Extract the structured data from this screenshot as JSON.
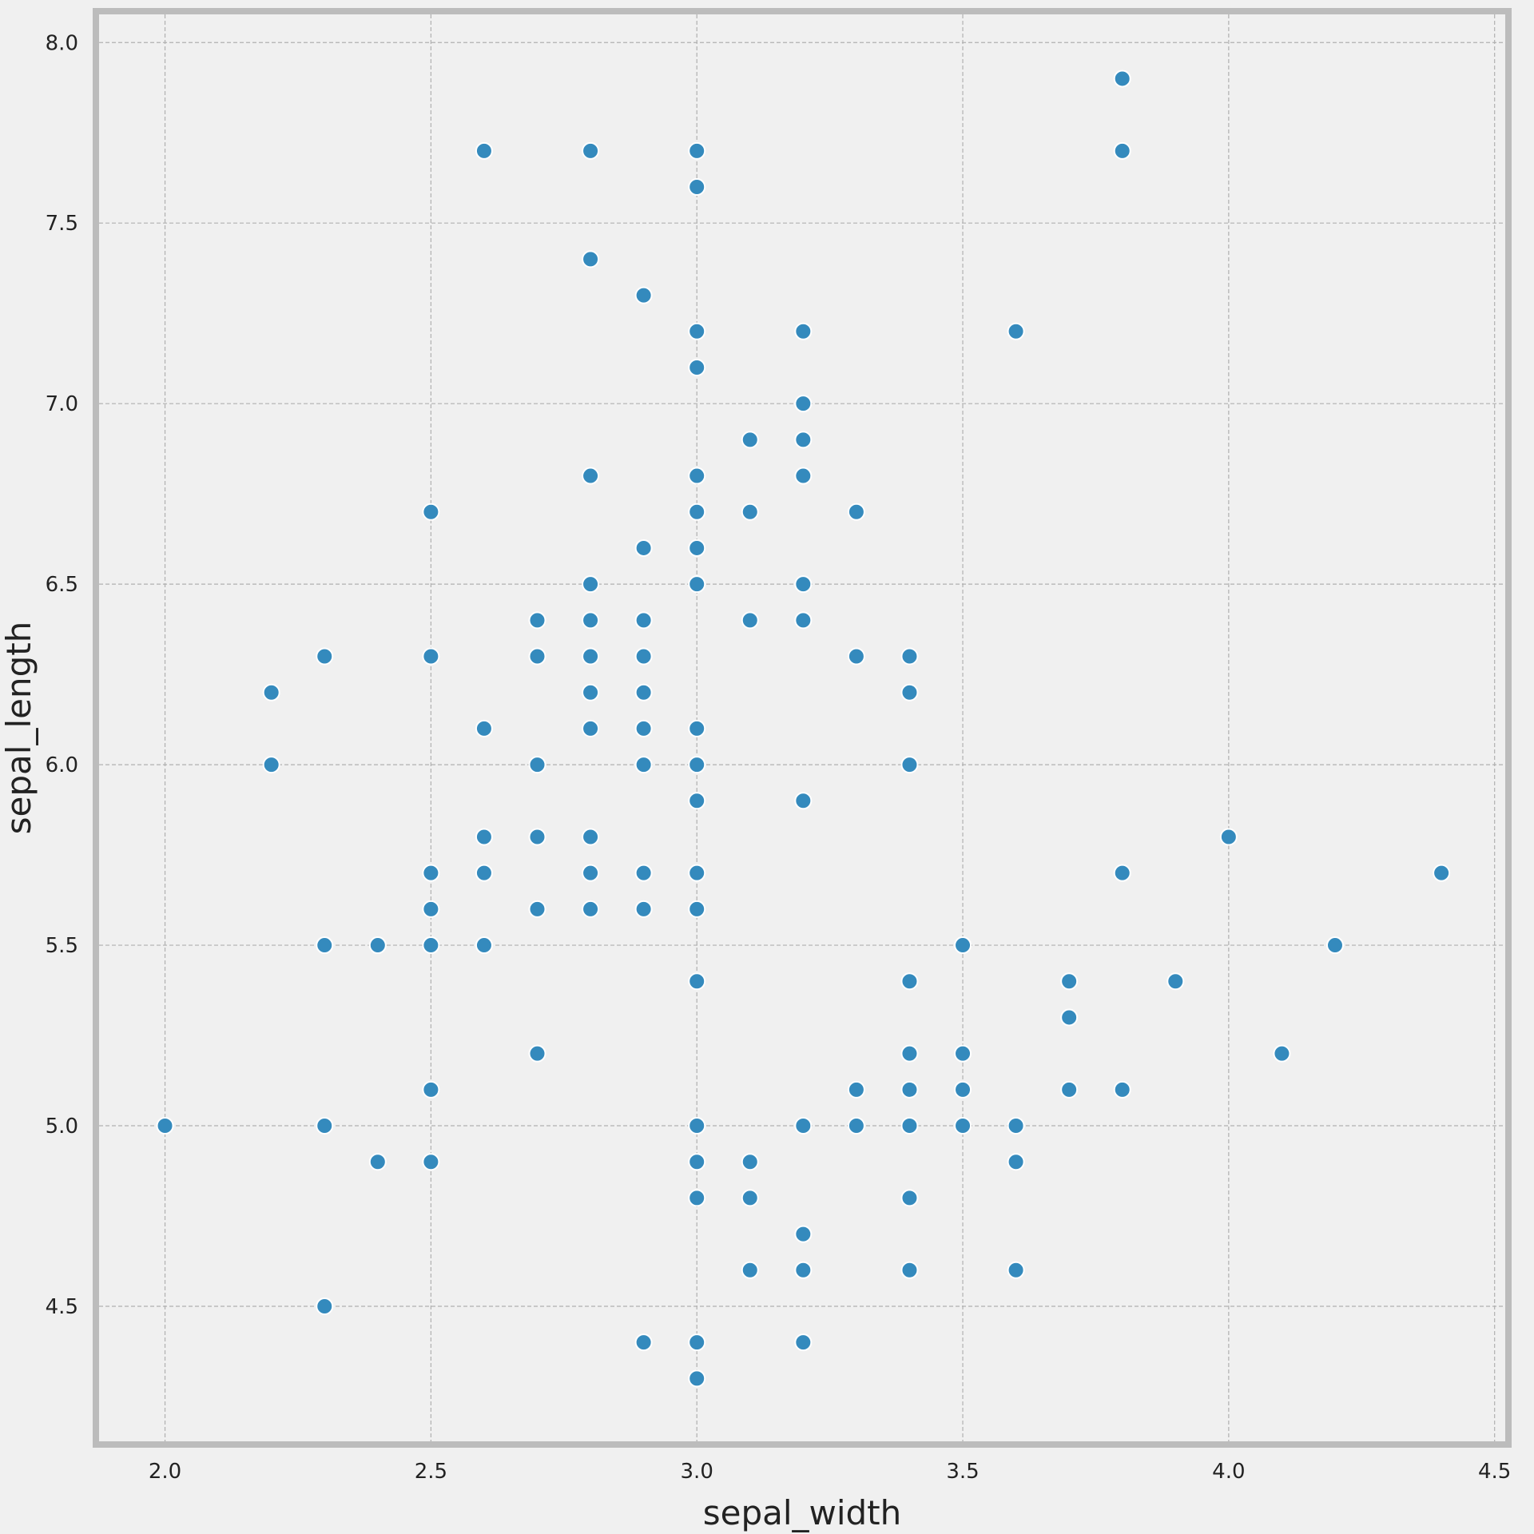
{
  "chart_data": {
    "type": "scatter",
    "x_label": "sepal_width",
    "y_label": "sepal_length",
    "color": "#348abd",
    "grid": true,
    "xlim": [
      1.876,
      4.52
    ],
    "ylim": [
      4.126,
      8.078
    ],
    "xticks": [
      {
        "value": 2.0,
        "label": "2.0"
      },
      {
        "value": 2.5,
        "label": "2.5"
      },
      {
        "value": 3.0,
        "label": "3.0"
      },
      {
        "value": 3.5,
        "label": "3.5"
      },
      {
        "value": 4.0,
        "label": "4.0"
      },
      {
        "value": 4.5,
        "label": "4.5"
      }
    ],
    "yticks": [
      {
        "value": 4.5,
        "label": "4.5"
      },
      {
        "value": 5.0,
        "label": "5.0"
      },
      {
        "value": 5.5,
        "label": "5.5"
      },
      {
        "value": 6.0,
        "label": "6.0"
      },
      {
        "value": 6.5,
        "label": "6.5"
      },
      {
        "value": 7.0,
        "label": "7.0"
      },
      {
        "value": 7.5,
        "label": "7.5"
      },
      {
        "value": 8.0,
        "label": "8.0"
      }
    ],
    "x": [
      3.8,
      2.6,
      2.8,
      3.0,
      3.8,
      3.0,
      2.8,
      2.9,
      3.0,
      3.2,
      3.6,
      3.0,
      3.2,
      3.1,
      3.2,
      2.8,
      3.0,
      3.2,
      2.5,
      3.0,
      3.1,
      3.3,
      2.9,
      3.0,
      2.8,
      3.0,
      3.2,
      2.7,
      2.8,
      2.9,
      3.1,
      3.2,
      2.3,
      2.5,
      2.7,
      2.8,
      2.9,
      3.3,
      3.4,
      2.2,
      2.8,
      2.9,
      3.4,
      2.6,
      2.8,
      2.9,
      3.0,
      2.2,
      2.7,
      2.9,
      3.0,
      3.4,
      3.0,
      3.2,
      2.6,
      2.7,
      2.8,
      4.0,
      2.5,
      2.6,
      2.8,
      2.9,
      3.0,
      3.8,
      4.4,
      2.5,
      2.7,
      2.8,
      2.9,
      3.0,
      2.3,
      2.4,
      2.5,
      2.6,
      3.5,
      4.2,
      3.0,
      3.4,
      3.7,
      3.9,
      3.7,
      2.7,
      3.4,
      3.5,
      4.1,
      2.5,
      3.3,
      3.4,
      3.5,
      3.7,
      3.8,
      2.0,
      2.3,
      3.0,
      3.2,
      3.3,
      3.4,
      3.5,
      3.6,
      2.4,
      2.5,
      3.0,
      3.1,
      3.6,
      3.0,
      3.1,
      3.4,
      3.2,
      3.1,
      3.2,
      3.4,
      3.6,
      2.3,
      2.9,
      3.0,
      3.2,
      3.0
    ],
    "y": [
      7.9,
      7.7,
      7.7,
      7.7,
      7.7,
      7.6,
      7.4,
      7.3,
      7.2,
      7.2,
      7.2,
      7.1,
      7.0,
      6.9,
      6.9,
      6.8,
      6.8,
      6.8,
      6.7,
      6.7,
      6.7,
      6.7,
      6.6,
      6.6,
      6.5,
      6.5,
      6.5,
      6.4,
      6.4,
      6.4,
      6.4,
      6.4,
      6.3,
      6.3,
      6.3,
      6.3,
      6.3,
      6.3,
      6.3,
      6.2,
      6.2,
      6.2,
      6.2,
      6.1,
      6.1,
      6.1,
      6.1,
      6.0,
      6.0,
      6.0,
      6.0,
      6.0,
      5.9,
      5.9,
      5.8,
      5.8,
      5.8,
      5.8,
      5.7,
      5.7,
      5.7,
      5.7,
      5.7,
      5.7,
      5.7,
      5.6,
      5.6,
      5.6,
      5.6,
      5.6,
      5.5,
      5.5,
      5.5,
      5.5,
      5.5,
      5.5,
      5.4,
      5.4,
      5.4,
      5.4,
      5.3,
      5.2,
      5.2,
      5.2,
      5.2,
      5.1,
      5.1,
      5.1,
      5.1,
      5.1,
      5.1,
      5.0,
      5.0,
      5.0,
      5.0,
      5.0,
      5.0,
      5.0,
      5.0,
      4.9,
      4.9,
      4.9,
      4.9,
      4.9,
      4.8,
      4.8,
      4.8,
      4.7,
      4.6,
      4.6,
      4.6,
      4.6,
      4.5,
      4.4,
      4.4,
      4.4,
      4.3
    ]
  }
}
